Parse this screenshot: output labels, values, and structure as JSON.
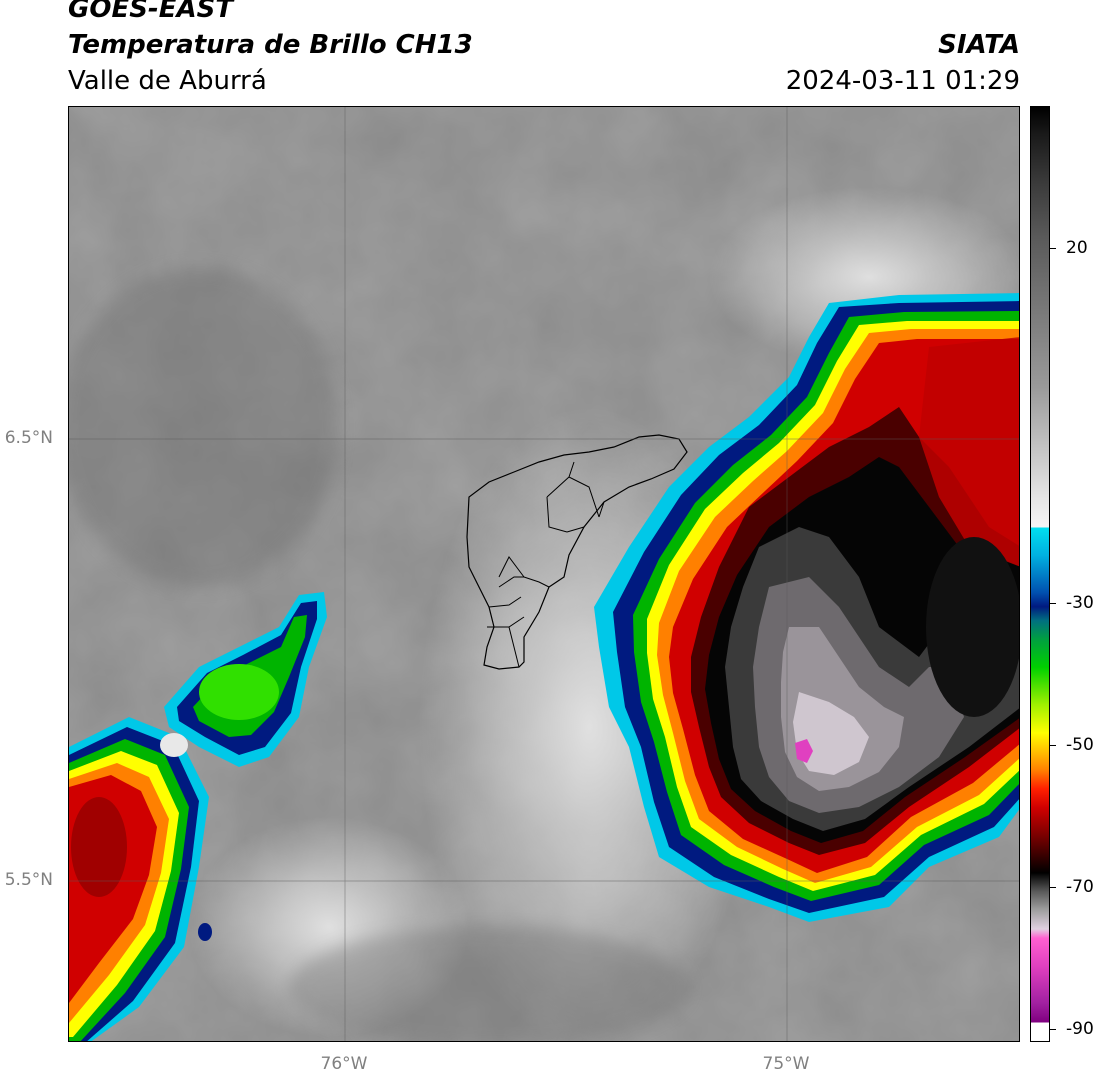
{
  "header": {
    "satellite": "GOES-EAST",
    "product": "Temperatura de Brillo CH13",
    "region": "Valle de Aburrá",
    "organization": "SIATA",
    "datetime": "2024-03-11 01:29"
  },
  "map": {
    "lat_labels": [
      "6.5°N",
      "5.5°N"
    ],
    "lon_labels": [
      "76°W",
      "75°W"
    ]
  },
  "colorbar": {
    "ticks": [
      "20",
      "-30",
      "-50",
      "-70",
      "-90"
    ],
    "range": [
      -92,
      40
    ],
    "colors": {
      "warm_gray": "#7a7a7a",
      "light_gray": "#e6e6e6",
      "cyan": "#00c8e8",
      "dark_blue": "#001a80",
      "green": "#00b400",
      "yellow": "#ffff00",
      "orange": "#ff8000",
      "red": "#d00000",
      "dark_red": "#4a0000",
      "black": "#000000",
      "magenta": "#e040c0",
      "purple": "#800080"
    }
  }
}
